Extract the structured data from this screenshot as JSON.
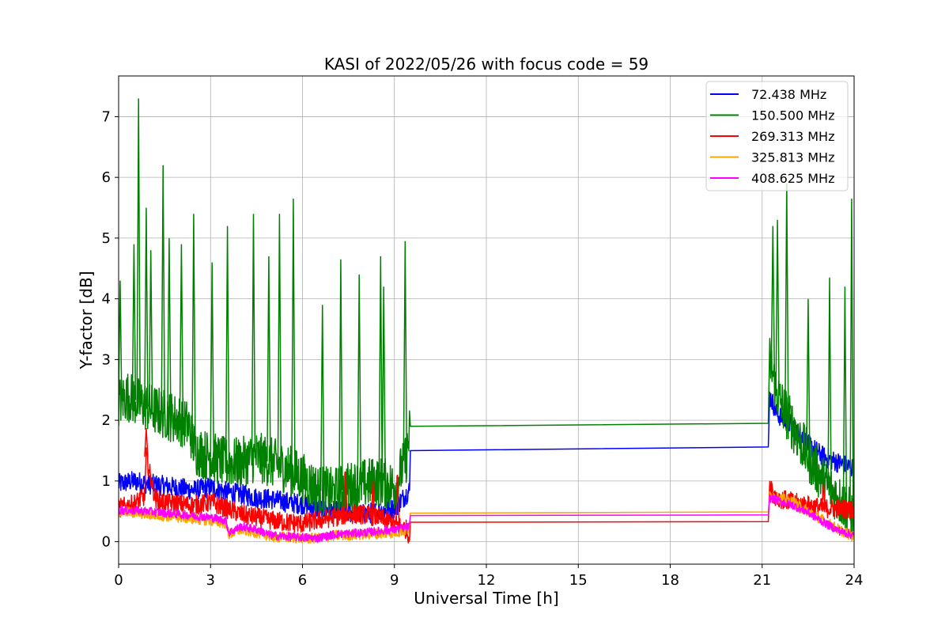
{
  "chart_data": {
    "type": "line",
    "title": "KASI of 2022/05/26 with focus code = 59",
    "xlabel": "Universal Time [h]",
    "ylabel": "Y-factor [dB]",
    "xlim": [
      0,
      24
    ],
    "ylim": [
      -0.37,
      7.67
    ],
    "xticks": [
      0,
      3,
      6,
      9,
      12,
      15,
      18,
      21,
      24
    ],
    "yticks": [
      0,
      1,
      2,
      3,
      4,
      5,
      6,
      7
    ],
    "grid": true,
    "legend_position": "upper-right",
    "series": [
      {
        "name": " 72.438 MHz",
        "color": "#0000ff",
        "x": [
          0,
          0.5,
          1,
          1.5,
          2,
          2.5,
          3,
          3.5,
          4,
          4.5,
          5,
          5.5,
          6,
          6.5,
          7,
          7.5,
          8,
          8.5,
          9,
          9.5,
          9.52,
          21.2,
          21.25,
          21.5,
          22,
          22.5,
          23,
          23.5,
          24
        ],
        "y": [
          0.95,
          1.0,
          0.95,
          0.92,
          0.88,
          0.85,
          0.9,
          0.82,
          0.78,
          0.72,
          0.7,
          0.65,
          0.62,
          0.55,
          0.5,
          0.48,
          0.45,
          0.5,
          0.55,
          0.85,
          1.5,
          1.56,
          2.4,
          2.1,
          1.9,
          1.6,
          1.4,
          1.3,
          1.2
        ],
        "noise": 0.17
      },
      {
        "name": "150.500 MHz",
        "color": "#008000",
        "x": [
          0,
          0.3,
          0.6,
          1,
          1.5,
          2,
          2.3,
          2.5,
          3,
          3.5,
          4,
          4.5,
          5,
          5.5,
          6,
          6.5,
          7,
          7.5,
          8,
          8.5,
          9,
          9.4,
          9.52,
          21.2,
          21.25,
          21.5,
          22,
          22.5,
          23,
          23.5,
          24
        ],
        "y": [
          2.3,
          2.4,
          2.3,
          2.2,
          2.1,
          2.0,
          1.9,
          1.5,
          1.4,
          1.3,
          1.3,
          1.4,
          1.3,
          1.2,
          1.05,
          0.85,
          0.8,
          0.9,
          0.95,
          1.0,
          0.9,
          1.4,
          1.9,
          1.95,
          3.0,
          2.4,
          1.9,
          1.4,
          1.0,
          0.7,
          0.4
        ],
        "noise": 0.42,
        "spikes": [
          [
            0.05,
            4.3
          ],
          [
            0.5,
            4.9
          ],
          [
            0.65,
            7.3
          ],
          [
            0.9,
            5.5
          ],
          [
            1.05,
            4.8
          ],
          [
            1.45,
            6.2
          ],
          [
            1.65,
            5.0
          ],
          [
            2.05,
            4.9
          ],
          [
            2.45,
            5.4
          ],
          [
            3.05,
            4.6
          ],
          [
            3.55,
            5.2
          ],
          [
            4.4,
            5.4
          ],
          [
            4.9,
            4.7
          ],
          [
            5.25,
            5.4
          ],
          [
            5.7,
            5.65
          ],
          [
            6.65,
            3.9
          ],
          [
            7.25,
            4.65
          ],
          [
            7.85,
            4.4
          ],
          [
            8.55,
            4.7
          ],
          [
            8.65,
            4.2
          ],
          [
            9.35,
            4.95
          ],
          [
            21.35,
            5.2
          ],
          [
            21.5,
            5.3
          ],
          [
            21.8,
            5.9
          ],
          [
            22.5,
            4.0
          ],
          [
            23.2,
            4.35
          ],
          [
            23.7,
            4.2
          ],
          [
            23.92,
            5.65
          ]
        ]
      },
      {
        "name": "269.313 MHz",
        "color": "#ff0000",
        "x": [
          0,
          0.5,
          0.85,
          0.9,
          1.2,
          1.5,
          2,
          2.5,
          3,
          3.5,
          4,
          4.5,
          5,
          5.5,
          6,
          6.5,
          7,
          7.5,
          8,
          8.5,
          9,
          9.4,
          9.5,
          9.52,
          21.2,
          21.25,
          21.5,
          22,
          22.5,
          23,
          23.5,
          24
        ],
        "y": [
          0.55,
          0.62,
          0.75,
          1.4,
          0.7,
          0.65,
          0.62,
          0.6,
          0.65,
          0.55,
          0.45,
          0.4,
          0.35,
          0.32,
          0.3,
          0.35,
          0.4,
          0.45,
          0.45,
          0.4,
          0.3,
          0.2,
          0.05,
          0.32,
          0.33,
          0.85,
          0.72,
          0.65,
          0.6,
          0.55,
          0.55,
          0.52
        ],
        "noise": 0.16,
        "spikes": [
          [
            0.9,
            1.87
          ],
          [
            7.4,
            1.15
          ],
          [
            8.3,
            1.0
          ],
          [
            9.1,
            1.1
          ],
          [
            21.3,
            1.0
          ],
          [
            23.0,
            0.95
          ]
        ]
      },
      {
        "name": "325.813 MHz",
        "color": "#ffa500",
        "x": [
          0,
          1,
          2,
          3,
          3.5,
          3.6,
          4,
          4.5,
          4.9,
          5,
          6,
          6.5,
          7,
          8,
          9,
          9.5,
          9.52,
          21.2,
          21.25,
          21.5,
          22,
          22.5,
          23,
          23.5,
          24
        ],
        "y": [
          0.5,
          0.45,
          0.4,
          0.35,
          0.3,
          0.12,
          0.2,
          0.15,
          0.1,
          0.08,
          0.06,
          0.05,
          0.1,
          0.12,
          0.15,
          0.2,
          0.47,
          0.49,
          0.78,
          0.72,
          0.65,
          0.5,
          0.35,
          0.2,
          0.08
        ],
        "noise": 0.09
      },
      {
        "name": "408.625 MHz",
        "color": "#ff00ff",
        "x": [
          0,
          1,
          2,
          3,
          3.5,
          3.6,
          4,
          4.5,
          4.9,
          5,
          6,
          6.5,
          7,
          8,
          9,
          9.5,
          9.52,
          21.2,
          21.25,
          21.5,
          22,
          22.5,
          23,
          23.5,
          24
        ],
        "y": [
          0.52,
          0.5,
          0.45,
          0.4,
          0.35,
          0.15,
          0.25,
          0.2,
          0.12,
          0.1,
          0.07,
          0.06,
          0.12,
          0.15,
          0.2,
          0.25,
          0.43,
          0.44,
          0.72,
          0.68,
          0.6,
          0.48,
          0.32,
          0.18,
          0.1
        ],
        "noise": 0.07
      }
    ]
  }
}
